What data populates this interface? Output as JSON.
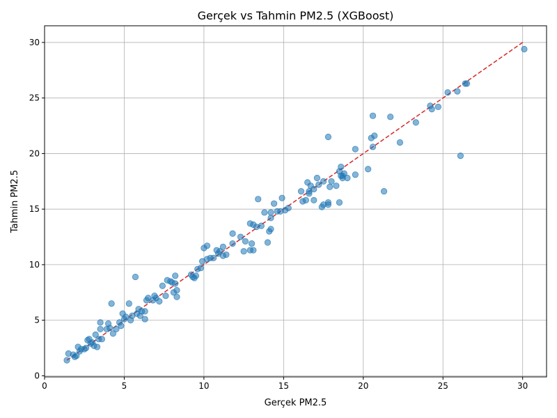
{
  "colors": {
    "point_fill": "#1f77b4",
    "point_stroke": "#1f77b4",
    "reference_line": "#d62728",
    "grid": "#b0b0b0",
    "axes": "#000000",
    "background": "#ffffff"
  },
  "chart_data": {
    "type": "scatter",
    "title": "Gerçek vs Tahmin PM2.5 (XGBoost)",
    "xlabel": "Gerçek PM2.5",
    "ylabel": "Tahmin PM2.5",
    "xlim": [
      0,
      31.5
    ],
    "ylim": [
      -0.1,
      31.5
    ],
    "xticks": [
      0,
      5,
      10,
      15,
      20,
      25,
      30
    ],
    "yticks": [
      0,
      5,
      10,
      15,
      20,
      25,
      30
    ],
    "grid": true,
    "reference_line": {
      "style": "dashed",
      "from": [
        1.4,
        1.4
      ],
      "to": [
        30.1,
        30.1
      ]
    },
    "series": [
      {
        "marker": "circle",
        "alpha": 0.55,
        "points": [
          [
            1.4,
            1.4
          ],
          [
            1.5,
            2.0
          ],
          [
            1.8,
            1.9
          ],
          [
            1.9,
            1.7
          ],
          [
            2.0,
            1.8
          ],
          [
            2.1,
            2.6
          ],
          [
            2.2,
            2.2
          ],
          [
            2.3,
            2.4
          ],
          [
            2.5,
            2.4
          ],
          [
            2.6,
            2.5
          ],
          [
            2.7,
            3.2
          ],
          [
            2.8,
            3.3
          ],
          [
            2.9,
            2.9
          ],
          [
            3.0,
            3.0
          ],
          [
            3.1,
            2.7
          ],
          [
            3.2,
            3.7
          ],
          [
            3.3,
            2.6
          ],
          [
            3.4,
            3.3
          ],
          [
            3.5,
            4.8
          ],
          [
            3.5,
            4.2
          ],
          [
            3.6,
            3.3
          ],
          [
            3.9,
            4.2
          ],
          [
            4.0,
            4.7
          ],
          [
            4.1,
            4.3
          ],
          [
            4.2,
            6.5
          ],
          [
            4.3,
            3.8
          ],
          [
            4.5,
            4.2
          ],
          [
            4.7,
            4.8
          ],
          [
            4.8,
            4.5
          ],
          [
            4.9,
            5.6
          ],
          [
            5.0,
            5.1
          ],
          [
            5.1,
            5.3
          ],
          [
            5.3,
            6.5
          ],
          [
            5.4,
            5.0
          ],
          [
            5.5,
            5.4
          ],
          [
            5.7,
            8.9
          ],
          [
            5.8,
            5.6
          ],
          [
            5.9,
            6.0
          ],
          [
            6.0,
            5.4
          ],
          [
            6.1,
            5.8
          ],
          [
            6.3,
            5.1
          ],
          [
            6.3,
            5.8
          ],
          [
            6.4,
            6.8
          ],
          [
            6.5,
            7.0
          ],
          [
            6.8,
            6.8
          ],
          [
            6.9,
            7.2
          ],
          [
            7.0,
            7.0
          ],
          [
            7.2,
            6.7
          ],
          [
            7.4,
            8.1
          ],
          [
            7.6,
            7.2
          ],
          [
            7.7,
            8.6
          ],
          [
            7.9,
            8.5
          ],
          [
            8.0,
            8.4
          ],
          [
            8.1,
            7.5
          ],
          [
            8.2,
            9.0
          ],
          [
            8.2,
            8.3
          ],
          [
            8.3,
            7.1
          ],
          [
            8.3,
            7.7
          ],
          [
            9.2,
            9.1
          ],
          [
            9.3,
            8.9
          ],
          [
            9.4,
            8.8
          ],
          [
            9.5,
            9.0
          ],
          [
            9.6,
            9.6
          ],
          [
            9.8,
            9.7
          ],
          [
            9.9,
            10.3
          ],
          [
            10.0,
            11.5
          ],
          [
            10.2,
            11.7
          ],
          [
            10.2,
            10.5
          ],
          [
            10.4,
            10.6
          ],
          [
            10.6,
            10.6
          ],
          [
            10.8,
            11.3
          ],
          [
            10.9,
            11.0
          ],
          [
            11.0,
            11.2
          ],
          [
            11.2,
            11.6
          ],
          [
            11.2,
            10.8
          ],
          [
            11.4,
            10.9
          ],
          [
            11.8,
            12.8
          ],
          [
            11.8,
            11.9
          ],
          [
            12.3,
            12.5
          ],
          [
            12.5,
            11.2
          ],
          [
            12.6,
            12.1
          ],
          [
            12.9,
            13.7
          ],
          [
            12.9,
            11.3
          ],
          [
            13.0,
            11.9
          ],
          [
            13.1,
            13.6
          ],
          [
            13.1,
            11.3
          ],
          [
            13.3,
            13.4
          ],
          [
            13.4,
            15.9
          ],
          [
            13.6,
            13.5
          ],
          [
            13.8,
            14.7
          ],
          [
            14.0,
            12.0
          ],
          [
            14.1,
            13.0
          ],
          [
            14.2,
            14.2
          ],
          [
            14.2,
            13.2
          ],
          [
            14.2,
            14.7
          ],
          [
            14.4,
            15.5
          ],
          [
            14.6,
            14.8
          ],
          [
            14.8,
            14.8
          ],
          [
            14.9,
            16.0
          ],
          [
            15.1,
            14.9
          ],
          [
            15.3,
            15.1
          ],
          [
            16.1,
            16.6
          ],
          [
            16.2,
            15.7
          ],
          [
            16.4,
            15.8
          ],
          [
            16.5,
            17.4
          ],
          [
            16.6,
            16.6
          ],
          [
            16.6,
            16.4
          ],
          [
            16.7,
            17.1
          ],
          [
            16.9,
            16.8
          ],
          [
            16.9,
            15.8
          ],
          [
            17.1,
            17.8
          ],
          [
            17.2,
            17.2
          ],
          [
            17.4,
            15.2
          ],
          [
            17.5,
            17.5
          ],
          [
            17.5,
            15.4
          ],
          [
            17.8,
            15.4
          ],
          [
            17.8,
            15.6
          ],
          [
            17.8,
            21.5
          ],
          [
            17.9,
            17.0
          ],
          [
            18.0,
            17.5
          ],
          [
            18.3,
            17.1
          ],
          [
            18.5,
            18.4
          ],
          [
            18.5,
            15.6
          ],
          [
            18.6,
            18.8
          ],
          [
            18.6,
            18.0
          ],
          [
            18.7,
            18.0
          ],
          [
            18.7,
            17.8
          ],
          [
            18.8,
            18.2
          ],
          [
            19.0,
            17.8
          ],
          [
            19.5,
            20.4
          ],
          [
            19.5,
            18.1
          ],
          [
            20.3,
            18.6
          ],
          [
            20.5,
            21.4
          ],
          [
            20.6,
            23.4
          ],
          [
            20.6,
            20.6
          ],
          [
            20.7,
            21.6
          ],
          [
            21.3,
            16.6
          ],
          [
            21.7,
            23.3
          ],
          [
            22.3,
            21.0
          ],
          [
            23.3,
            22.8
          ],
          [
            24.2,
            24.3
          ],
          [
            24.3,
            24.0
          ],
          [
            24.7,
            24.2
          ],
          [
            25.3,
            25.5
          ],
          [
            25.9,
            25.6
          ],
          [
            26.1,
            19.8
          ],
          [
            26.4,
            26.3
          ],
          [
            26.5,
            26.3
          ],
          [
            30.1,
            29.4
          ]
        ]
      }
    ]
  }
}
